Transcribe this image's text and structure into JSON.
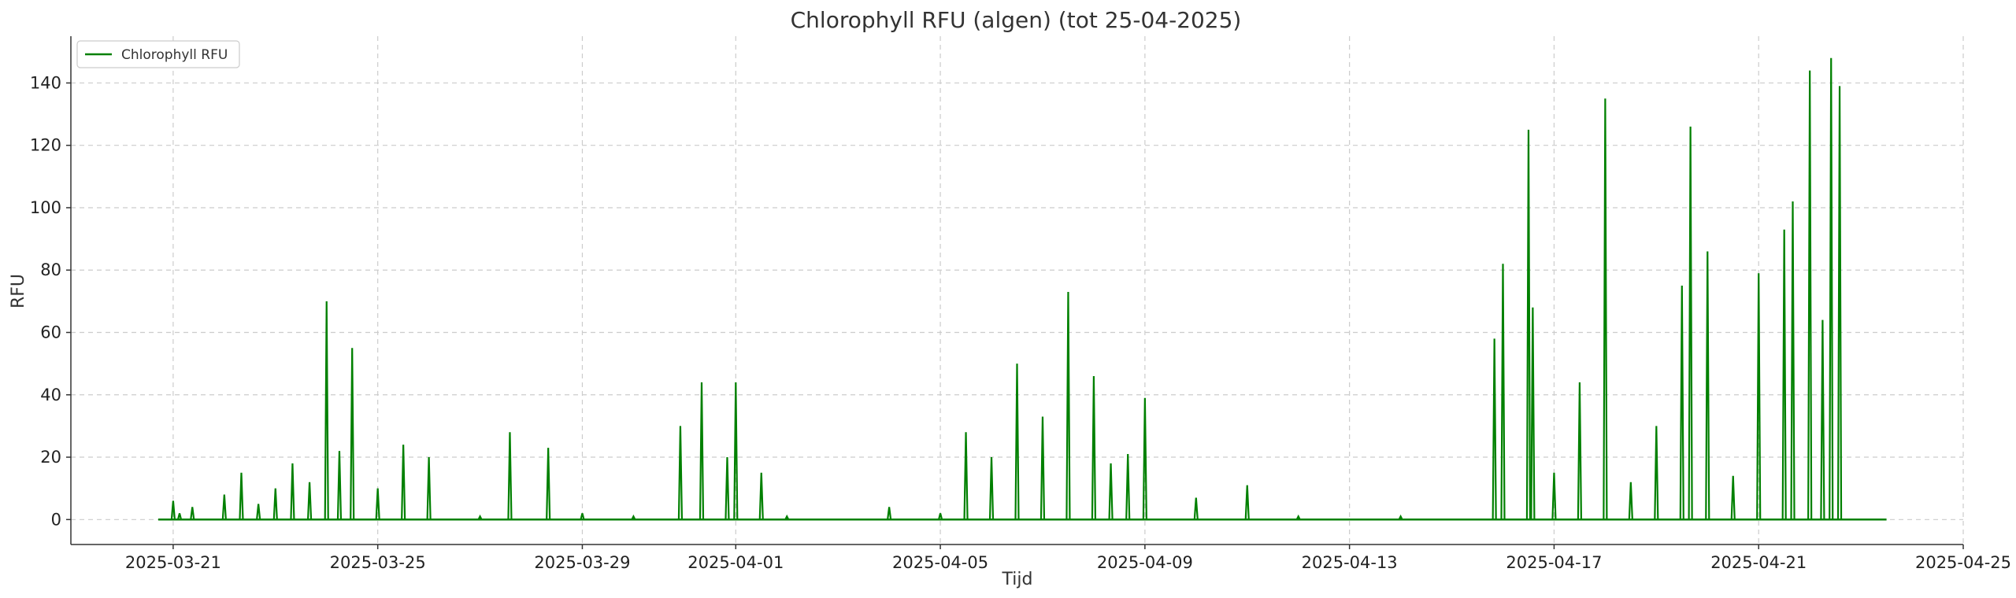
{
  "chart_data": {
    "type": "line",
    "title": "Chlorophyll RFU (algen) (tot 25-04-2025)",
    "xlabel": "Tijd",
    "ylabel": "RFU",
    "x_axis_type": "date",
    "xlim": [
      "2025-03-19",
      "2025-04-25"
    ],
    "ylim": [
      -8,
      155
    ],
    "x_ticks": [
      "2025-03-21",
      "2025-03-25",
      "2025-03-29",
      "2025-04-01",
      "2025-04-05",
      "2025-04-09",
      "2025-04-13",
      "2025-04-17",
      "2025-04-21",
      "2025-04-25"
    ],
    "y_ticks": [
      0,
      20,
      40,
      60,
      80,
      100,
      120,
      140
    ],
    "grid": true,
    "legend_position": "top-left",
    "series": [
      {
        "name": "Chlorophyll RFU",
        "color": "#008000",
        "x": [
          "2025-03-20 17:00",
          "2025-03-21 00:00",
          "2025-03-21 03:00",
          "2025-03-21 09:00",
          "2025-03-22 00:00",
          "2025-03-22 08:00",
          "2025-03-22 16:00",
          "2025-03-23 00:00",
          "2025-03-23 08:00",
          "2025-03-23 16:00",
          "2025-03-24 00:00",
          "2025-03-24 06:00",
          "2025-03-24 12:00",
          "2025-03-25 00:00",
          "2025-03-25 12:00",
          "2025-03-26 00:00",
          "2025-03-27 00:00",
          "2025-03-27 14:00",
          "2025-03-28 08:00",
          "2025-03-29 00:00",
          "2025-03-30 00:00",
          "2025-03-30 22:00",
          "2025-03-31 08:00",
          "2025-03-31 20:00",
          "2025-04-01 00:00",
          "2025-04-01 12:00",
          "2025-04-02 00:00",
          "2025-04-03 00:00",
          "2025-04-04 00:00",
          "2025-04-05 00:00",
          "2025-04-05 12:00",
          "2025-04-06 00:00",
          "2025-04-06 12:00",
          "2025-04-07 00:00",
          "2025-04-07 12:00",
          "2025-04-08 00:00",
          "2025-04-08 08:00",
          "2025-04-08 16:00",
          "2025-04-09 00:00",
          "2025-04-10 00:00",
          "2025-04-11 00:00",
          "2025-04-12 00:00",
          "2025-04-13 00:00",
          "2025-04-14 00:00",
          "2025-04-15 00:00",
          "2025-04-15 20:00",
          "2025-04-16 00:00",
          "2025-04-16 12:00",
          "2025-04-16 14:00",
          "2025-04-17 00:00",
          "2025-04-17 12:00",
          "2025-04-18 00:00",
          "2025-04-18 12:00",
          "2025-04-19 00:00",
          "2025-04-19 12:00",
          "2025-04-19 16:00",
          "2025-04-20 00:00",
          "2025-04-20 12:00",
          "2025-04-21 00:00",
          "2025-04-21 12:00",
          "2025-04-21 16:00",
          "2025-04-22 00:00",
          "2025-04-22 06:00",
          "2025-04-22 10:00",
          "2025-04-22 14:00",
          "2025-04-23 12:00"
        ],
        "values": [
          0,
          6,
          2,
          4,
          8,
          15,
          5,
          10,
          18,
          12,
          70,
          22,
          55,
          10,
          24,
          20,
          1,
          28,
          23,
          2,
          1,
          30,
          44,
          20,
          44,
          15,
          1,
          0,
          4,
          2,
          28,
          20,
          50,
          33,
          73,
          46,
          18,
          21,
          39,
          7,
          11,
          1,
          0,
          1,
          0,
          58,
          82,
          125,
          68,
          15,
          44,
          135,
          12,
          30,
          75,
          126,
          86,
          14,
          79,
          93,
          102,
          144,
          64,
          148,
          139,
          0
        ]
      }
    ]
  }
}
